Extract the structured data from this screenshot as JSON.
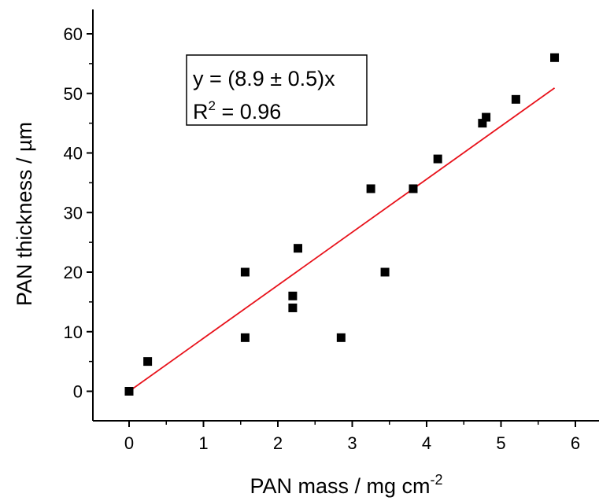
{
  "chart_data": {
    "type": "scatter",
    "xlabel": "PAN mass / mg cm",
    "xlabel_sup": "-2",
    "ylabel": "PAN thickness / µm",
    "xlim": [
      -0.5,
      6.5
    ],
    "ylim": [
      -5,
      65
    ],
    "x_ticks": [
      0,
      1,
      2,
      3,
      4,
      5,
      6
    ],
    "y_ticks": [
      0,
      10,
      20,
      30,
      40,
      50,
      60
    ],
    "grid": false,
    "points": [
      {
        "x": 0.0,
        "y": 0
      },
      {
        "x": 0.25,
        "y": 5
      },
      {
        "x": 1.56,
        "y": 9
      },
      {
        "x": 1.56,
        "y": 20
      },
      {
        "x": 2.2,
        "y": 14
      },
      {
        "x": 2.2,
        "y": 16
      },
      {
        "x": 2.27,
        "y": 24
      },
      {
        "x": 2.85,
        "y": 9
      },
      {
        "x": 3.25,
        "y": 34
      },
      {
        "x": 3.44,
        "y": 20
      },
      {
        "x": 3.82,
        "y": 34
      },
      {
        "x": 4.15,
        "y": 39
      },
      {
        "x": 4.75,
        "y": 45
      },
      {
        "x": 4.8,
        "y": 46
      },
      {
        "x": 5.2,
        "y": 49
      },
      {
        "x": 5.72,
        "y": 56
      }
    ],
    "fit": {
      "slope": 8.9,
      "x_range": [
        0,
        5.72
      ],
      "color": "#e8121b"
    },
    "marker_color": "#000000",
    "annotation": {
      "line1": "y = (8.9 ± 0.5)x",
      "line2_prefix": "R",
      "line2_sup": "2",
      "line2_suffix": " = 0.96"
    }
  }
}
